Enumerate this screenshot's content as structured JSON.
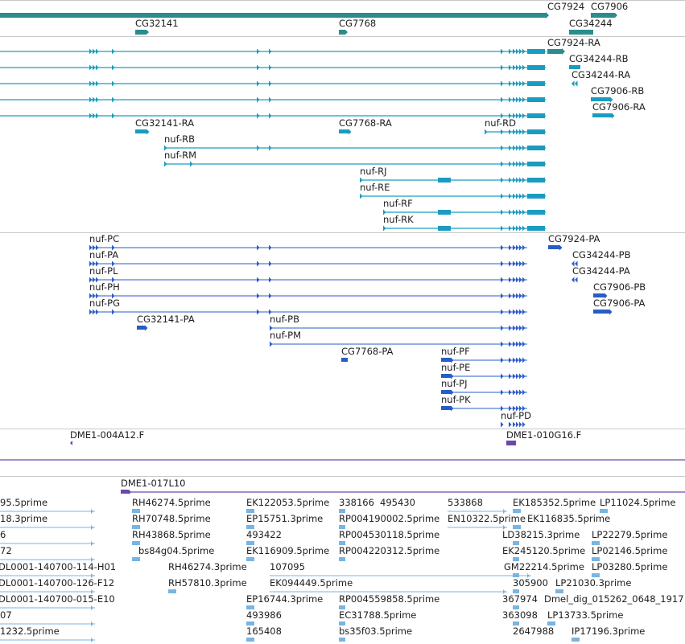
{
  "colors": {
    "teal": "#2a8c8c",
    "cyan": "#1a9cc0",
    "blue": "#2a5cc8",
    "purple": "#6a4aa8",
    "lightblue": "#7ab4e0"
  },
  "gene_track": {
    "labels": [
      "CG7924",
      "CG7906",
      "CG32141",
      "CG7768",
      "CG34244"
    ]
  },
  "transcript_track": {
    "labels": [
      "CG7924-RA",
      "CG34244-RB",
      "CG34244-RA",
      "CG7906-RB",
      "CG7906-RA",
      "CG32141-RA",
      "CG7768-RA",
      "nuf-RD",
      "nuf-RB",
      "nuf-RM",
      "nuf-RJ",
      "nuf-RE",
      "nuf-RF",
      "nuf-RK"
    ]
  },
  "protein_track": {
    "labels": [
      "nuf-PC",
      "CG7924-PA",
      "nuf-PA",
      "CG34244-PB",
      "nuf-PL",
      "CG34244-PA",
      "nuf-PH",
      "CG7906-PB",
      "nuf-PG",
      "CG7906-PA",
      "CG32141-PA",
      "nuf-PB",
      "nuf-PM",
      "CG7768-PA",
      "nuf-PF",
      "nuf-PE",
      "nuf-PJ",
      "nuf-PK",
      "nuf-PD"
    ]
  },
  "clone_track": {
    "labels": [
      "DME1-004A12.F",
      "DME1-010G16.F",
      "DME1-017L10"
    ]
  },
  "est_track": {
    "labels": [
      "95.5prime",
      "18.3prime",
      "6",
      "72",
      "DL0001-140700-114-H01",
      "DL0001-140700-126-F12",
      "DL0001-140700-015-E10",
      "07",
      "1232.5prime",
      "RH46274.5prime",
      "RH70748.5prime",
      "RH43868.5prime",
      "bs84g04.5prime",
      "RH46274.3prime",
      "RH57810.3prime",
      "EK122053.5prime",
      "EP15751.3prime",
      "493422",
      "EK116909.5prime",
      "107095",
      "EK094449.5prime",
      "EP16744.3prime",
      "493986",
      "165408",
      "338166",
      "495430",
      "RP004190002.5prime",
      "RP004530118.5prime",
      "RP004220312.5prime",
      "RP004559858.5prime",
      "EC31788.5prime",
      "bs35f03.5prime",
      "533868",
      "EN10322.5prime",
      "EK185352.5prime",
      "EK116835.5prime",
      "LD38215.3prime",
      "EK245120.5prime",
      "GM22214.5prime",
      "305900",
      "367974",
      "363098",
      "2647988",
      "LP11024.5prime",
      "LP22279.5prime",
      "LP02146.5prime",
      "LP03280.5prime",
      "LP21030.3prime",
      "Dmel_dig_015262_0648_1917",
      "LP13733.5prime",
      "IP17196.3prime"
    ]
  }
}
